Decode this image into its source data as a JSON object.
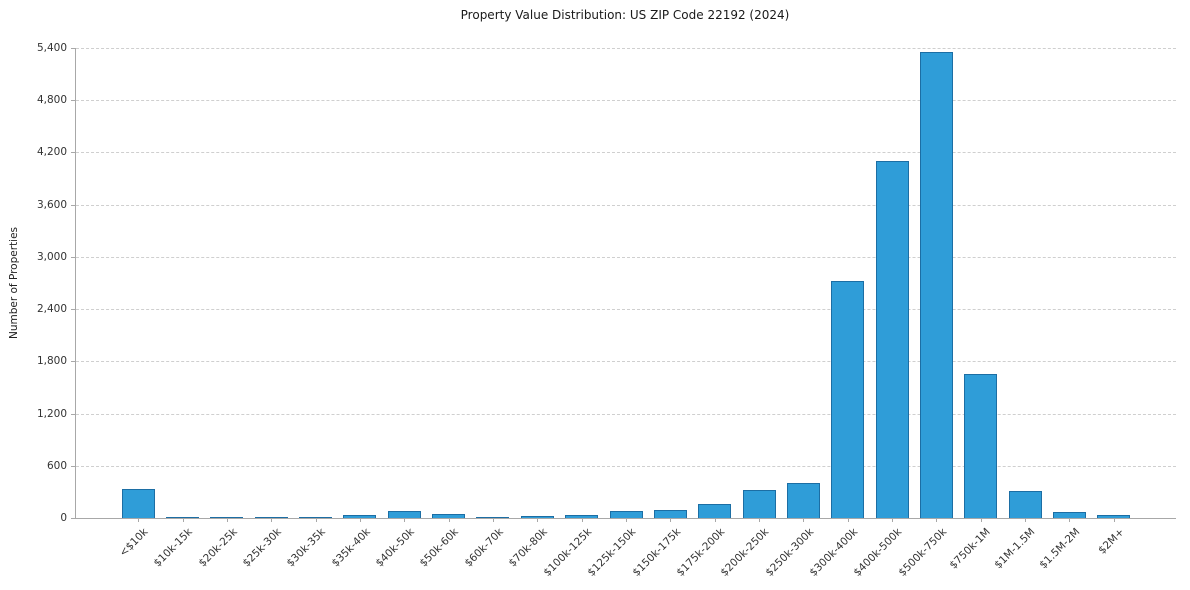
{
  "chart_data": {
    "type": "bar",
    "title": "Property Value Distribution: US ZIP Code 22192 (2024)",
    "xlabel": "",
    "ylabel": "Number of Properties",
    "categories": [
      "<$10k",
      "$10k-15k",
      "$20k-25k",
      "$25k-30k",
      "$30k-35k",
      "$35k-40k",
      "$40k-50k",
      "$50k-60k",
      "$60k-70k",
      "$70k-80k",
      "$100k-125k",
      "$125k-150k",
      "$150k-175k",
      "$175k-200k",
      "$200k-250k",
      "$250k-300k",
      "$300k-400k",
      "$400k-500k",
      "$500k-750k",
      "$750k-1M",
      "$1M-1.5M",
      "$1.5M-2M",
      "$2M+"
    ],
    "values": [
      330,
      15,
      3,
      10,
      2,
      40,
      75,
      45,
      5,
      20,
      40,
      85,
      90,
      160,
      320,
      400,
      2720,
      4100,
      5350,
      1650,
      310,
      70,
      35
    ],
    "ylim": [
      0,
      5400
    ],
    "yticks": [
      0,
      600,
      1200,
      1800,
      2400,
      3000,
      3600,
      4200,
      4800,
      5400
    ],
    "ytick_labels": [
      "0",
      "600",
      "1,200",
      "1,800",
      "2,400",
      "3,000",
      "3,600",
      "4,200",
      "4,800",
      "5,400"
    ],
    "grid": true,
    "legend": "none",
    "colors": {
      "bar_fill": "#2f9dd8",
      "bar_edge": "#1c6ea4",
      "grid_line": "#cfcfcf",
      "axis_line": "#a8a8a8",
      "text": "#333333",
      "background": "#ffffff"
    }
  }
}
